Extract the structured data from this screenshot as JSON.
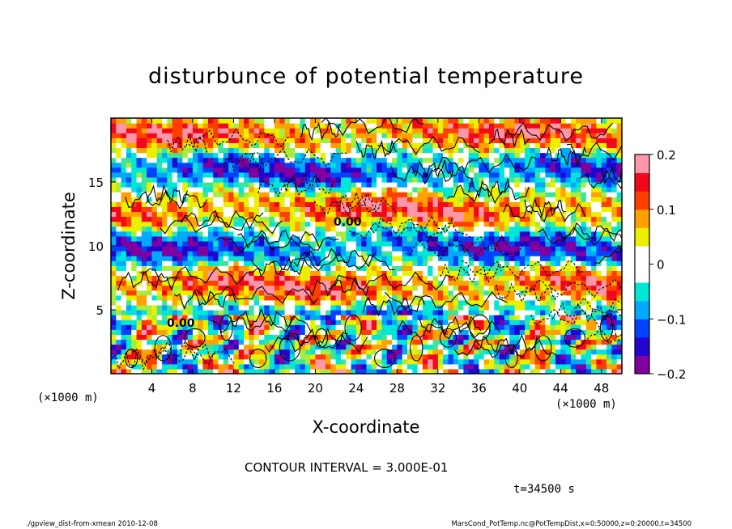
{
  "chart_data": {
    "type": "heatmap",
    "title": "disturbunce of potential temperature",
    "xlabel": "X-coordinate",
    "ylabel": "Z-coordinate",
    "x_unit": "(×1000 m)",
    "z_unit": "(×1000 m)",
    "x_ticks": [
      4,
      8,
      12,
      16,
      20,
      24,
      28,
      32,
      36,
      40,
      44,
      48
    ],
    "z_ticks": [
      5,
      10,
      15
    ],
    "xlim": [
      0,
      50
    ],
    "zlim": [
      0,
      20
    ],
    "colorbar": {
      "min": -0.2,
      "max": 0.2,
      "tick_labels": [
        "0.2",
        "0.1",
        "0",
        "−0.1",
        "−0.2"
      ],
      "tick_values": [
        0.2,
        0.1,
        0,
        -0.1,
        -0.2
      ]
    },
    "contour_interval": "CONTOUR INTERVAL = 3.000E-01",
    "contour_labels": [
      "0.00",
      "0.00"
    ],
    "time_label": "t=34500 s"
  },
  "footer": {
    "left": "./gpview_dist-from-xmean  2010-12-08",
    "right": "MarsCond_PotTemp.nc@PotTempDist,x=0:50000,z=0:20000,t=34500"
  }
}
